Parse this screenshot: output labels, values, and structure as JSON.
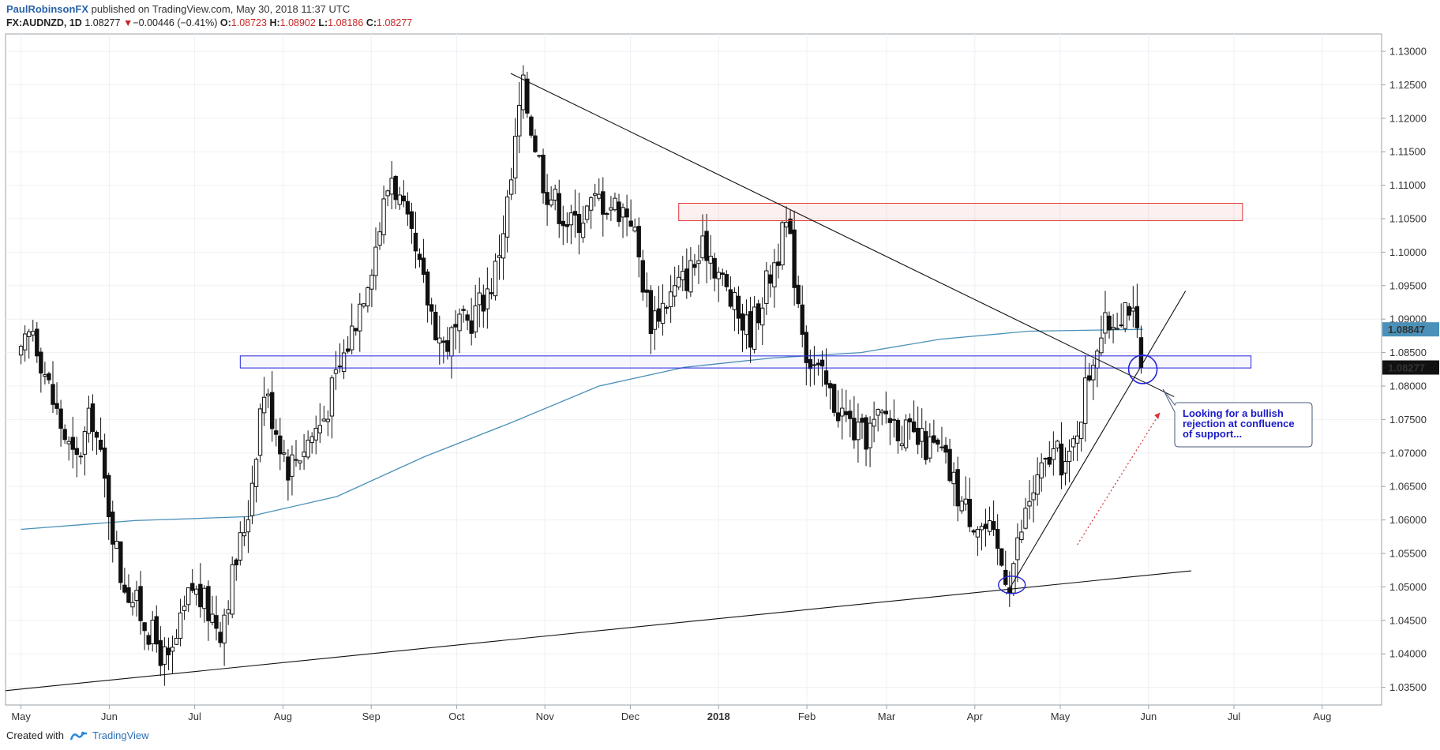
{
  "header": {
    "author": "PaulRobinsonFX",
    "published": "published on TradingView.com, May 30, 2018 11:37 UTC"
  },
  "symbol_bar": {
    "symbol": "FX:AUDNZD, 1D",
    "last": "1.08277",
    "arrow": "▼",
    "change": "−0.00446 (−0.41%)",
    "o_label": "O:",
    "o": "1.08723",
    "h_label": "H:",
    "h": "1.08902",
    "l_label": "L:",
    "l": "1.08186",
    "c_label": "C:",
    "c": "1.08277"
  },
  "footer": {
    "created_with": "Created with",
    "brand": "TradingView"
  },
  "colors": {
    "grid": "#eef0f4",
    "ma": "#4a90b8",
    "resistance_zone": "#e23a3a",
    "support_zone": "#2323d9",
    "annotation": "#1b1bc9",
    "dotted_arrow": "#d83030",
    "price_label_bg": "#111111",
    "ma_label_bg": "#4a90b8"
  },
  "chart_data": {
    "type": "candlestick",
    "title": "FX:AUDNZD, 1D",
    "ylim": [
      1.033,
      1.133
    ],
    "yticks": [
      "1.13000",
      "1.12500",
      "1.12000",
      "1.11500",
      "1.11000",
      "1.10500",
      "1.10000",
      "1.09500",
      "1.09000",
      "1.08500",
      "1.08000",
      "1.07500",
      "1.07000",
      "1.06500",
      "1.06000",
      "1.05500",
      "1.05000",
      "1.04500",
      "1.04000",
      "1.03500"
    ],
    "xticks": [
      "May",
      "Jun",
      "Jul",
      "Aug",
      "Sep",
      "Oct",
      "Nov",
      "Dec",
      "2018",
      "Feb",
      "Mar",
      "Apr",
      "May",
      "Jun",
      "Jul",
      "Aug"
    ],
    "price_labels": {
      "ma_value": "1.08847",
      "last_value": "1.08277"
    },
    "key_points": [
      {
        "date": "2017-05-01",
        "close": 1.084
      },
      {
        "date": "2017-06-22",
        "close": 1.038
      },
      {
        "date": "2017-09-08",
        "close": 1.112
      },
      {
        "date": "2017-10-24",
        "close": 1.125
      },
      {
        "date": "2018-01-25",
        "close": 1.104
      },
      {
        "date": "2018-04-13",
        "close": 1.051
      },
      {
        "date": "2018-05-25",
        "close": 1.093
      },
      {
        "date": "2018-05-30",
        "close": 1.08277
      }
    ],
    "moving_average": {
      "period": 200,
      "last": 1.08847
    },
    "zones": [
      {
        "name": "resistance",
        "from": 1.1047,
        "to": 1.1073
      },
      {
        "name": "support",
        "from": 1.0827,
        "to": 1.0845
      }
    ],
    "annotation": "Looking for a bullish rejection at confluence of support..."
  },
  "annotation": {
    "line1": "Looking for a bullish",
    "line2": "rejection at confluence",
    "line3": "of support..."
  }
}
